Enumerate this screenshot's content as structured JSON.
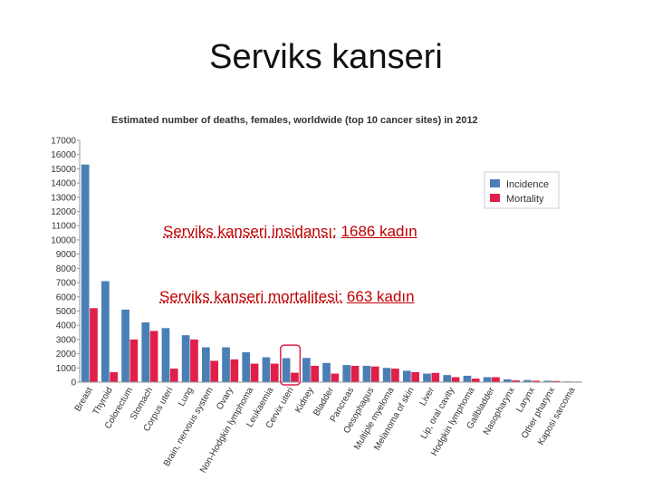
{
  "slide": {
    "title": "Serviks kanseri"
  },
  "chart_data": {
    "type": "bar",
    "title": "Estimated number of deaths, females, worldwide (top 10 cancer sites) in 2012",
    "ylim": [
      0,
      17000
    ],
    "yticks": [
      0,
      1000,
      2000,
      3000,
      4000,
      5000,
      6000,
      7000,
      8000,
      9000,
      10000,
      11000,
      12000,
      13000,
      14000,
      15000,
      16000,
      17000
    ],
    "grid": false,
    "legend_position": "top-right",
    "categories": [
      "Breast",
      "Thyroid",
      "Colorectum",
      "Stomach",
      "Corpus uteri",
      "Lung",
      "Brain, nervous system",
      "Ovary",
      "Non-Hodgkin lymphoma",
      "Leukaemia",
      "Cervix uteri",
      "Kidney",
      "Bladder",
      "Pancreas",
      "Oesophagus",
      "Multiple myeloma",
      "Melanoma of skin",
      "Liver",
      "Lip, oral cavity",
      "Hodgkin lymphoma",
      "Gallbladder",
      "Nasopharynx",
      "Larynx",
      "Other pharynx",
      "Kaposi sarcoma"
    ],
    "series": [
      {
        "name": "Incidence",
        "color": "#4a7fb5",
        "values": [
          15300,
          7100,
          5100,
          4200,
          3800,
          3300,
          2450,
          2450,
          2100,
          1750,
          1686,
          1700,
          1350,
          1200,
          1150,
          1000,
          800,
          600,
          500,
          450,
          350,
          200,
          150,
          100,
          50
        ]
      },
      {
        "name": "Mortality",
        "color": "#e0204a",
        "values": [
          5200,
          700,
          3000,
          3600,
          950,
          3000,
          1500,
          1600,
          1300,
          1300,
          663,
          1150,
          600,
          1150,
          1100,
          950,
          700,
          650,
          350,
          250,
          350,
          120,
          100,
          80,
          40
        ]
      }
    ]
  },
  "annotations": {
    "incidence_label": "Serviks kanseri insidansı:",
    "incidence_value": "1686 kadın",
    "mortality_label": "Serviks kanseri mortalitesi:",
    "mortality_value": "663 kadın"
  }
}
